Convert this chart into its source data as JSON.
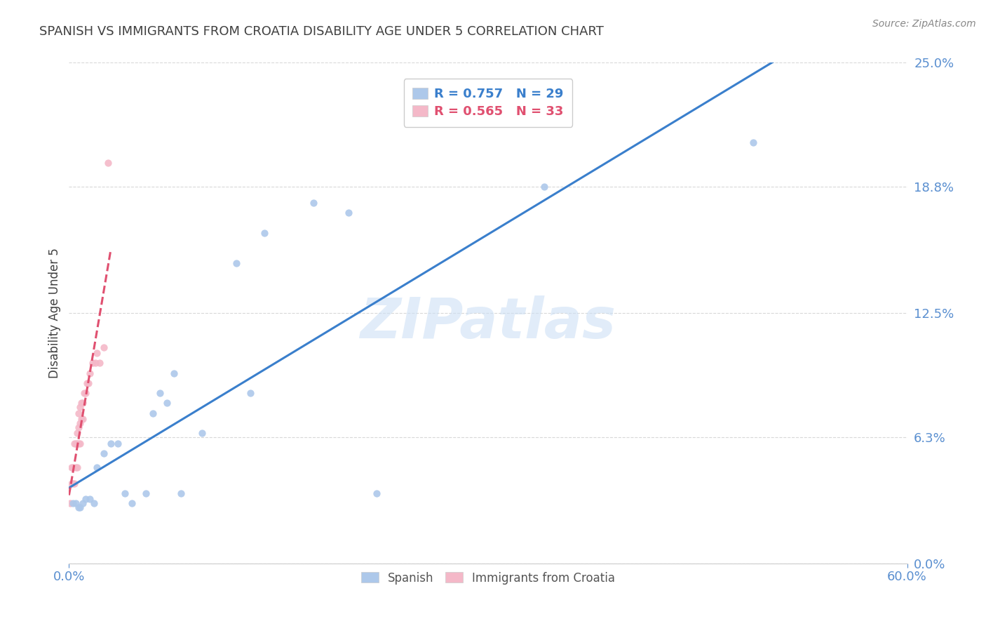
{
  "title": "SPANISH VS IMMIGRANTS FROM CROATIA DISABILITY AGE UNDER 5 CORRELATION CHART",
  "source": "Source: ZipAtlas.com",
  "ylabel": "Disability Age Under 5",
  "watermark": "ZIPatlas",
  "xlim": [
    0.0,
    0.6
  ],
  "ylim": [
    0.0,
    0.25
  ],
  "xtick_labels": [
    "0.0%",
    "60.0%"
  ],
  "ytick_labels": [
    "0.0%",
    "6.3%",
    "12.5%",
    "18.8%",
    "25.0%"
  ],
  "ytick_values": [
    0.0,
    0.063,
    0.125,
    0.188,
    0.25
  ],
  "xtick_values": [
    0.0,
    0.6
  ],
  "spanish_R": 0.757,
  "spanish_N": 29,
  "croatia_R": 0.565,
  "croatia_N": 33,
  "spanish_color": "#adc8ea",
  "croatia_color": "#f4b8c8",
  "trendline_spanish_color": "#3a7fcc",
  "trendline_croatia_color": "#e05070",
  "spanish_x": [
    0.003,
    0.005,
    0.007,
    0.008,
    0.01,
    0.012,
    0.015,
    0.018,
    0.02,
    0.025,
    0.03,
    0.035,
    0.04,
    0.045,
    0.055,
    0.06,
    0.065,
    0.07,
    0.075,
    0.08,
    0.095,
    0.12,
    0.13,
    0.14,
    0.175,
    0.2,
    0.22,
    0.34,
    0.49
  ],
  "spanish_y": [
    0.03,
    0.03,
    0.028,
    0.028,
    0.03,
    0.032,
    0.032,
    0.03,
    0.048,
    0.055,
    0.06,
    0.06,
    0.035,
    0.03,
    0.035,
    0.075,
    0.085,
    0.08,
    0.095,
    0.035,
    0.065,
    0.15,
    0.085,
    0.165,
    0.18,
    0.175,
    0.035,
    0.188,
    0.21
  ],
  "croatia_x": [
    0.001,
    0.002,
    0.002,
    0.003,
    0.003,
    0.004,
    0.004,
    0.005,
    0.005,
    0.006,
    0.006,
    0.006,
    0.007,
    0.007,
    0.007,
    0.008,
    0.008,
    0.008,
    0.009,
    0.009,
    0.01,
    0.01,
    0.011,
    0.012,
    0.013,
    0.014,
    0.015,
    0.017,
    0.019,
    0.02,
    0.022,
    0.025,
    0.028
  ],
  "croatia_y": [
    0.03,
    0.04,
    0.048,
    0.04,
    0.048,
    0.04,
    0.06,
    0.048,
    0.06,
    0.048,
    0.06,
    0.065,
    0.06,
    0.068,
    0.075,
    0.06,
    0.07,
    0.078,
    0.072,
    0.08,
    0.072,
    0.08,
    0.085,
    0.085,
    0.09,
    0.09,
    0.095,
    0.1,
    0.1,
    0.105,
    0.1,
    0.108,
    0.2
  ],
  "legend_border_color": "#cccccc",
  "legend_spanish_text_color": "#3a7fcc",
  "legend_croatia_text_color": "#e05070",
  "background_color": "#ffffff",
  "grid_color": "#d8d8d8",
  "title_color": "#404040",
  "axis_label_color": "#5a8fd0",
  "tick_color": "#5a8fd0"
}
